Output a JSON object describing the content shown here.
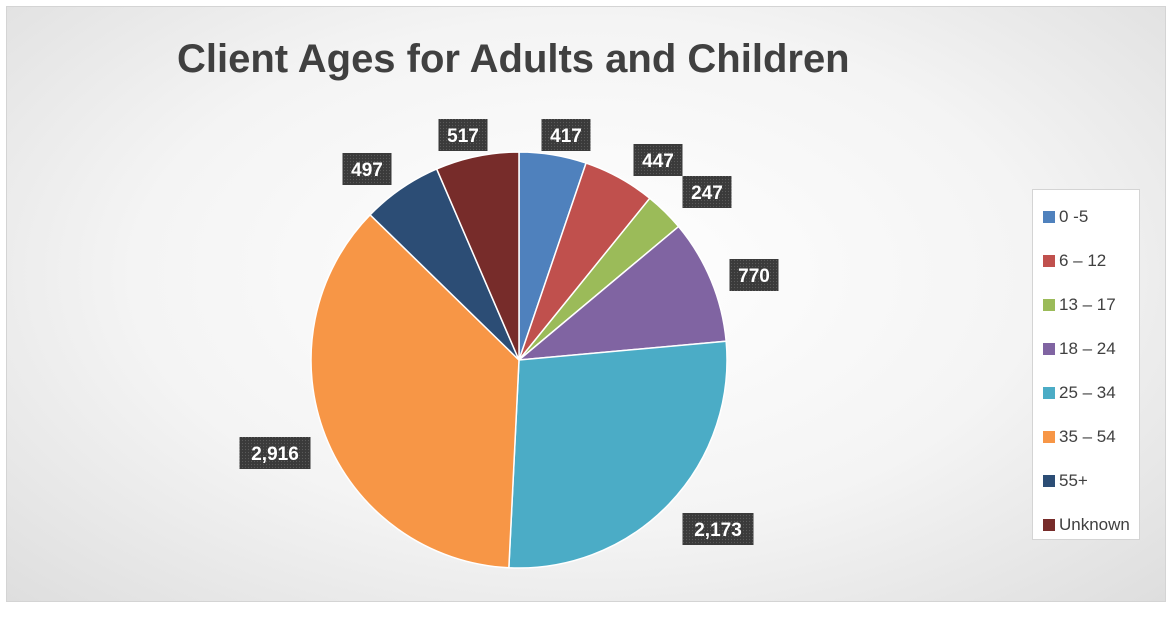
{
  "chart_data": {
    "type": "pie",
    "title": "Client Ages for Adults and Children",
    "categories": [
      "0 -5",
      "6 – 12",
      "13 – 17",
      "18 – 24",
      "25 – 34",
      "35 – 54",
      "55+",
      "Unknown"
    ],
    "values": [
      417,
      447,
      247,
      770,
      2173,
      2916,
      497,
      517
    ],
    "value_labels": [
      "417",
      "447",
      "247",
      "770",
      "2,173",
      "2,916",
      "497",
      "517"
    ],
    "colors": [
      "#4f81bd",
      "#c0504d",
      "#9bbb59",
      "#8064a2",
      "#4bacc6",
      "#f79646",
      "#2c4d75",
      "#772c2a"
    ],
    "start_angle_deg": 0,
    "direction": "clockwise",
    "legend_position": "right",
    "data_label_style": "dark box, white bold text"
  }
}
